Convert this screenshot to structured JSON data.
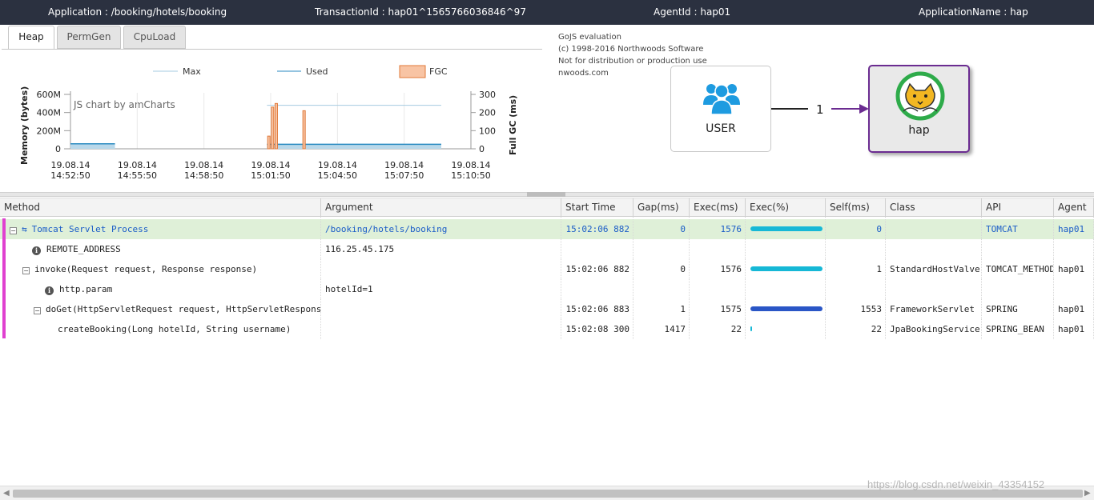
{
  "header": {
    "application": "Application : /booking/hotels/booking",
    "transaction": "TransactionId : hap01^1565766036846^97",
    "agent": "AgentId : hap01",
    "app_name": "ApplicationName : hap"
  },
  "tabs": [
    "Heap",
    "PermGen",
    "CpuLoad"
  ],
  "chart_data": {
    "type": "line",
    "watermark": "JS chart by amCharts",
    "legend": [
      "Max",
      "Used",
      "FGC"
    ],
    "legend_placement": "top",
    "ylabel_left": "Memory (bytes)",
    "ylabel_right": "Full GC (ms)",
    "yticks_left": [
      "600M",
      "400M",
      "200M",
      "0"
    ],
    "yticks_right": [
      "300",
      "200",
      "100",
      "0"
    ],
    "ylim_left": [
      0,
      600
    ],
    "ylim_right": [
      0,
      300
    ],
    "xticks": [
      {
        "date": "19.08.14",
        "time": "14:52:50"
      },
      {
        "date": "19.08.14",
        "time": "14:55:50"
      },
      {
        "date": "19.08.14",
        "time": "14:58:50"
      },
      {
        "date": "19.08.14",
        "time": "15:01:50"
      },
      {
        "date": "19.08.14",
        "time": "15:04:50"
      },
      {
        "date": "19.08.14",
        "time": "15:07:50"
      },
      {
        "date": "19.08.14",
        "time": "15:10:50"
      }
    ],
    "series": [
      {
        "name": "Max",
        "color": "#a6cbe0",
        "segments": [
          {
            "from": "15:01:40",
            "to": "15:09:30",
            "value": 480
          }
        ]
      },
      {
        "name": "Used",
        "color": "#2a8ac0",
        "segments": [
          {
            "from": "14:52:50",
            "to": "14:54:50",
            "value": 55
          },
          {
            "from": "15:01:40",
            "to": "15:09:30",
            "value": 50
          }
        ]
      },
      {
        "name": "FGC",
        "color": "#e07a3a",
        "bars": [
          {
            "at": "15:01:45",
            "value": 70
          },
          {
            "at": "15:01:55",
            "value": 230
          },
          {
            "at": "15:02:05",
            "value": 250
          },
          {
            "at": "15:03:20",
            "value": 210
          }
        ]
      }
    ]
  },
  "diagram": {
    "notice": [
      "GoJS evaluation",
      "(c) 1998-2016 Northwoods Software",
      "Not for distribution or production use",
      "nwoods.com"
    ],
    "user_label": "USER",
    "server_label": "hap",
    "link_count": "1",
    "accent": "#6b2c91"
  },
  "grid": {
    "columns": [
      "Method",
      "Argument",
      "Start Time",
      "Gap(ms)",
      "Exec(ms)",
      "Exec(%)",
      "Self(ms)",
      "Class",
      "API",
      "Agent"
    ],
    "rows": [
      {
        "toggle": "⊟",
        "icon": "",
        "method": "Tomcat Servlet Process",
        "argument": "/booking/hotels/booking",
        "start": "15:02:06 882",
        "gap": "0",
        "exec": "1576",
        "pct": 100,
        "self": "0",
        "cls": "",
        "api": "TOMCAT",
        "agent": "hap01",
        "highlight": true
      },
      {
        "toggle": "",
        "icon": "i",
        "method": "REMOTE_ADDRESS",
        "argument": "116.25.45.175",
        "start": "",
        "gap": "",
        "exec": "",
        "pct": 0,
        "self": "",
        "cls": "",
        "api": "",
        "agent": ""
      },
      {
        "toggle": "⊟",
        "icon": "",
        "method": "invoke(Request request, Response response)",
        "argument": "",
        "start": "15:02:06 882",
        "gap": "0",
        "exec": "1576",
        "pct": 100,
        "self": "1",
        "cls": "StandardHostValve",
        "api": "TOMCAT_METHOD",
        "agent": "hap01"
      },
      {
        "toggle": "",
        "icon": "i",
        "method": "http.param",
        "argument": "hotelId=1",
        "start": "",
        "gap": "",
        "exec": "",
        "pct": 0,
        "self": "",
        "cls": "",
        "api": "",
        "agent": ""
      },
      {
        "toggle": "⊟",
        "icon": "",
        "method": "doGet(HttpServletRequest request, HttpServletResponse response)",
        "argument": "",
        "start": "15:02:06 883",
        "gap": "1",
        "exec": "1575",
        "pct": 99.9,
        "self": "1553",
        "cls": "FrameworkServlet",
        "api": "SPRING",
        "agent": "hap01"
      },
      {
        "toggle": "",
        "icon": "",
        "method": "createBooking(Long hotelId, String username)",
        "argument": "",
        "start": "15:02:08 300",
        "gap": "1417",
        "exec": "22",
        "pct": 1.4,
        "self": "22",
        "cls": "JpaBookingService",
        "api": "SPRING_BEAN",
        "agent": "hap01"
      }
    ]
  },
  "watermark": "https://blog.csdn.net/weixin_43354152"
}
